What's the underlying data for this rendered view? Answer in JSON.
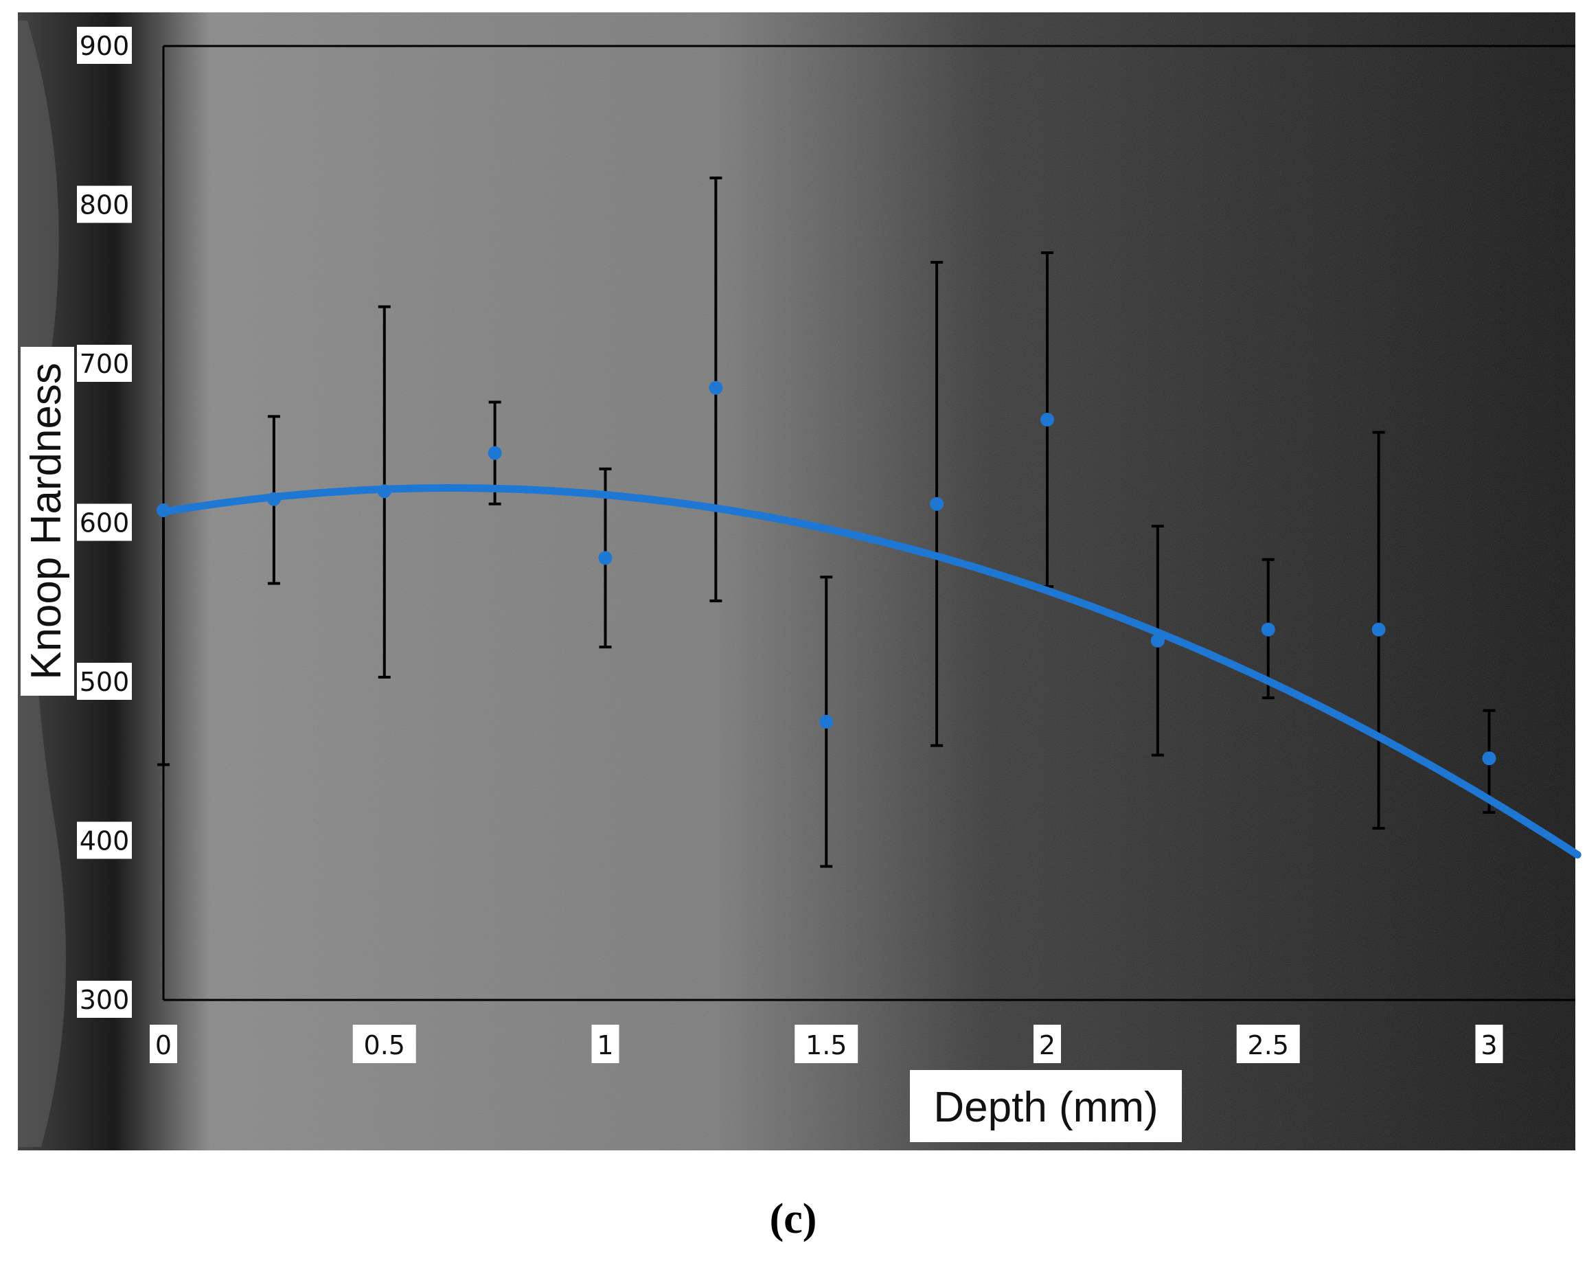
{
  "figure": {
    "panel_label": "(c)",
    "colors": {
      "series": "#1f77d4",
      "errorbar": "#000000",
      "label_box": "#ffffff",
      "background_light": "#8a8a8a",
      "background_dark": "#141414"
    }
  },
  "chart_data": {
    "type": "scatter",
    "title": "",
    "xlabel": "Depth (mm)",
    "ylabel": "Knoop Hardness",
    "xlim": [
      0,
      3.2
    ],
    "ylim": [
      300,
      900
    ],
    "x_ticks": [
      0,
      0.5,
      1,
      1.5,
      2,
      2.5,
      3
    ],
    "x_tick_labels": [
      "0",
      "0.5",
      "1",
      "1.5",
      "2",
      "2.5",
      "3"
    ],
    "y_ticks": [
      300,
      400,
      500,
      600,
      700,
      800,
      900
    ],
    "y_tick_labels": [
      "300",
      "400",
      "500",
      "600",
      "700",
      "800",
      "900"
    ],
    "grid": false,
    "legend": "none",
    "series": [
      {
        "points": [
          {
            "x": 0,
            "y": 608,
            "err_low": 448,
            "err_high": 608
          },
          {
            "x": 0.25,
            "y": 615,
            "err_low": 562,
            "err_high": 667
          },
          {
            "x": 0.5,
            "y": 620,
            "err_low": 503,
            "err_high": 736
          },
          {
            "x": 0.75,
            "y": 644,
            "err_low": 612,
            "err_high": 676
          },
          {
            "x": 1,
            "y": 578,
            "err_low": 522,
            "err_high": 634
          },
          {
            "x": 1.25,
            "y": 685,
            "err_low": 551,
            "err_high": 817
          },
          {
            "x": 1.5,
            "y": 475,
            "err_low": 384,
            "err_high": 566
          },
          {
            "x": 1.75,
            "y": 612,
            "err_low": 460,
            "err_high": 764
          },
          {
            "x": 2,
            "y": 665,
            "err_low": 560,
            "err_high": 770
          },
          {
            "x": 2.25,
            "y": 526,
            "err_low": 454,
            "err_high": 598
          },
          {
            "x": 2.5,
            "y": 533,
            "err_low": 490,
            "err_high": 577
          },
          {
            "x": 2.75,
            "y": 533,
            "err_low": 408,
            "err_high": 657
          },
          {
            "x": 3,
            "y": 452,
            "err_low": 418,
            "err_high": 482
          }
        ]
      }
    ],
    "trendline": {
      "type": "polynomial-2",
      "coefficients": {
        "a": -35.5,
        "b": 46.2,
        "c": 607
      }
    }
  }
}
